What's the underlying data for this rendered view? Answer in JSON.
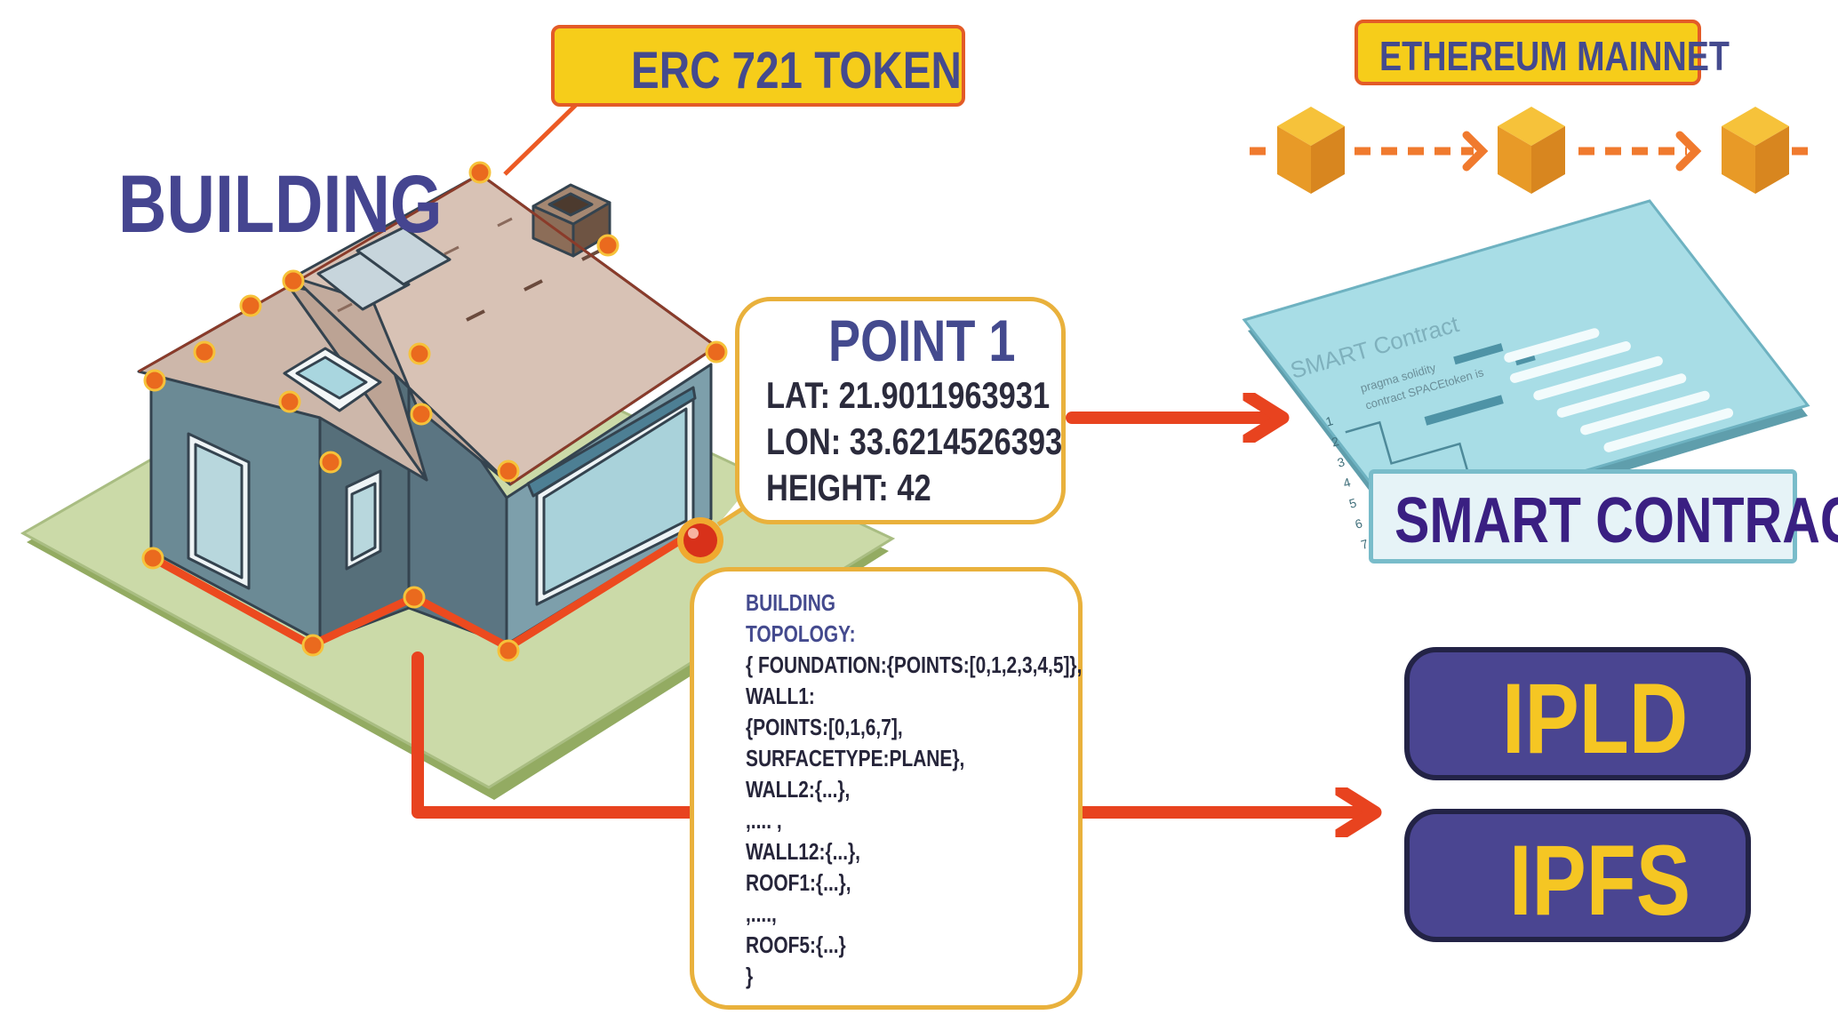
{
  "labels": {
    "building": "BUILDING",
    "erc_token": "ERC 721 TOKEN",
    "ethereum_mainnet": "ETHEREUM MAINNET",
    "smart_contract": "SMART CONTRACT",
    "ipld": "IPLD",
    "ipfs": "IPFS"
  },
  "point": {
    "title": "POINT 1",
    "lat": "LAT: 21.9011963931",
    "lon": "LON: 33.6214526393",
    "height": "HEIGHT: 42"
  },
  "topology": {
    "heading": [
      "BUILDING",
      "TOPOLOGY:"
    ],
    "lines": [
      "{ FOUNDATION:{POINTS:[0,1,2,3,4,5]},",
      "WALL1:",
      "{POINTS:[0,1,6,7],",
      "SURFACETYPE:PLANE},",
      "WALL2:{...},",
      ",.... ,",
      "WALL12:{...},",
      "ROOF1:{...},",
      ",....,",
      "ROOF5:{...}",
      "}"
    ]
  },
  "contract_document": {
    "title": "SMART  Contract",
    "code_lines": [
      "pragma solidity",
      "contract SPACEtoken is"
    ],
    "line_numbers": [
      "1",
      "2",
      "3",
      "4",
      "5",
      "6",
      "7"
    ]
  },
  "colors": {
    "arrow": "#e8431f",
    "vertex": "#ea6a1e",
    "label_text": "#444a8e",
    "token_fill": "#f6cd1a",
    "block": "#efa733",
    "ip_box": "#4a4591",
    "ip_text": "#f5c623",
    "contract_teal": "#a8dde6"
  }
}
